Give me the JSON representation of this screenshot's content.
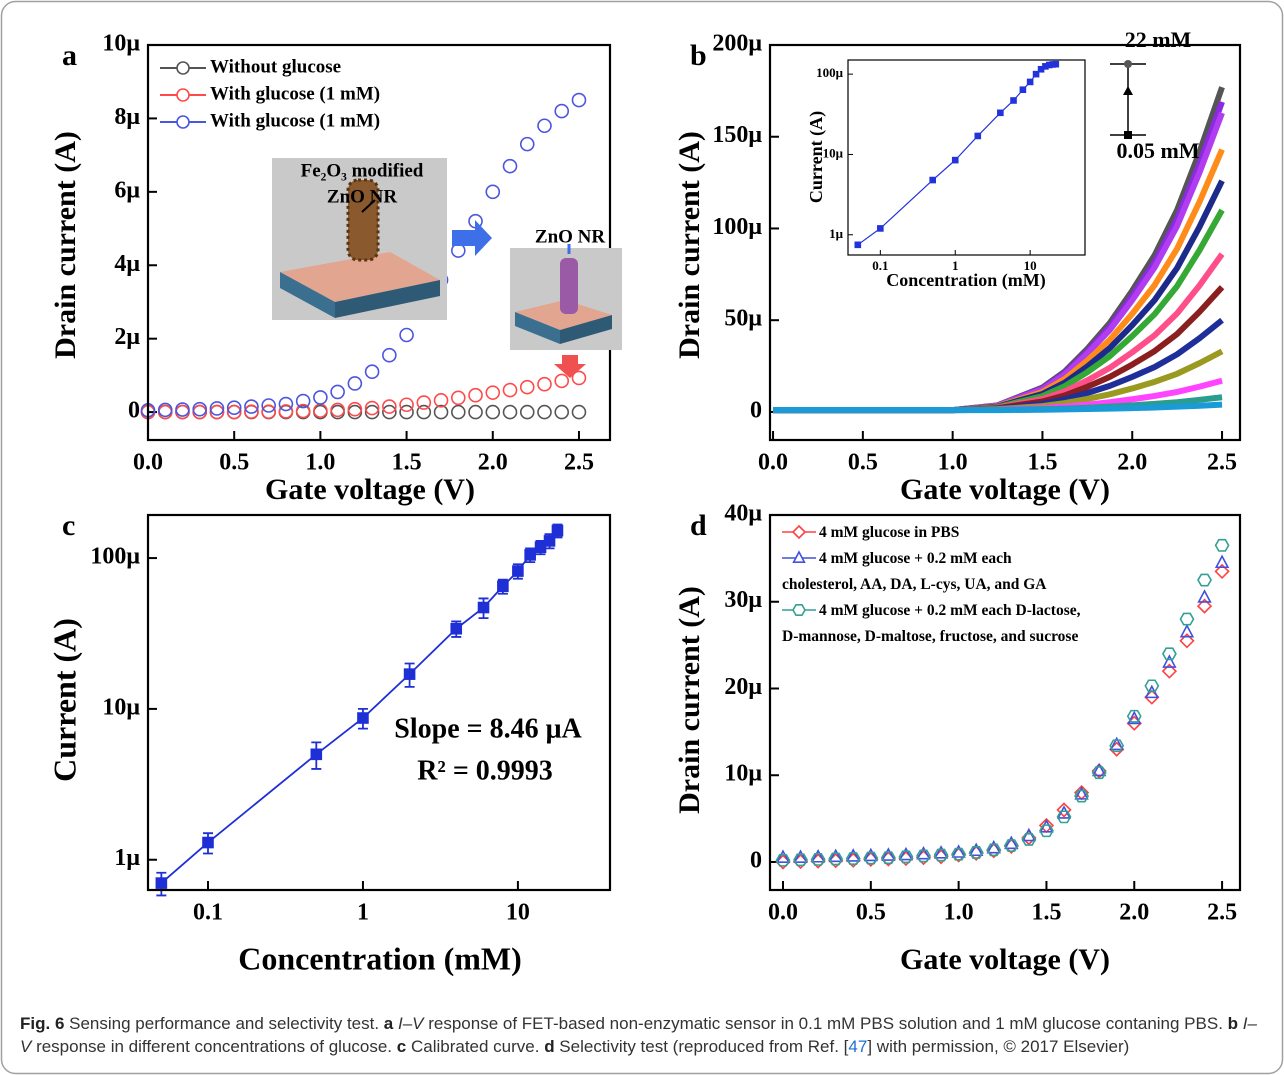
{
  "chart_data": [
    {
      "type": "line",
      "panel": "a",
      "xlabel": "Gate voltage (V)",
      "ylabel": "Drain current (A)",
      "xlim": [
        0,
        2.68
      ],
      "ylim": [
        -7.6e-07,
        1e-05
      ],
      "xticks": [
        {
          "value": 0,
          "label": "0.0"
        },
        0.5,
        {
          "value": 1,
          "label": "1.0"
        },
        1.5,
        {
          "value": 2,
          "label": "2.0"
        },
        2.5
      ],
      "yticks": [
        0,
        {
          "value": 2e-06,
          "label": "2μ"
        },
        {
          "value": 4e-06,
          "label": "4μ"
        },
        {
          "value": 6e-06,
          "label": "6μ"
        },
        {
          "value": 8e-06,
          "label": "8μ"
        },
        {
          "value": 1e-05,
          "label": "10μ"
        }
      ],
      "marker_fill": "none",
      "legend": "upper left",
      "annotations": [
        "Fe₂O₃ modified",
        "ZnO NR",
        "ZnO NR"
      ],
      "x": [
        0,
        0.1,
        0.2,
        0.3,
        0.4,
        0.5,
        0.6,
        0.7,
        0.8,
        0.9,
        1,
        1.1,
        1.2,
        1.3,
        1.4,
        1.5,
        1.6,
        1.7,
        1.8,
        1.9,
        2,
        2.1,
        2.2,
        2.3,
        2.4,
        2.5
      ],
      "series": [
        {
          "name": "Without glucose",
          "color": "#555555",
          "marker": "circle",
          "values": [
            0,
            0,
            0,
            0,
            0,
            0,
            0,
            0,
            0,
            0,
            0,
            0,
            0,
            0,
            0,
            0,
            0,
            0,
            0,
            0,
            0,
            0,
            0,
            0,
            0,
            0
          ]
        },
        {
          "name": "With glucose (1 mM)",
          "color": "#ff4a4a",
          "marker": "circle",
          "values": [
            0,
            0,
            0,
            0,
            0,
            0,
            1e-08,
            1e-08,
            2e-08,
            3e-08,
            4e-08,
            6e-08,
            8e-08,
            1.1e-07,
            1.5e-07,
            2e-07,
            2.6e-07,
            3.2e-07,
            3.9e-07,
            4.6e-07,
            5.3e-07,
            6e-07,
            6.8e-07,
            7.6e-07,
            8.5e-07,
            9.3e-07
          ]
        },
        {
          "name": "With glucose (1 mM)",
          "color": "#4a55e0",
          "marker": "circle",
          "values": [
            5e-08,
            6e-08,
            7e-08,
            8e-08,
            1e-07,
            1.2e-07,
            1.5e-07,
            1.8e-07,
            2.2e-07,
            3e-07,
            4e-07,
            5.5e-07,
            7.8e-07,
            1.1e-06,
            1.55e-06,
            2.1e-06,
            2.8e-06,
            3.6e-06,
            4.4e-06,
            5.2e-06,
            6e-06,
            6.7e-06,
            7.3e-06,
            7.8e-06,
            8.2e-06,
            8.5e-06
          ]
        }
      ]
    },
    {
      "type": "line",
      "panel": "b",
      "xlabel": "Gate voltage (V)",
      "ylabel": "Drain current (A)",
      "xlim": [
        -0.017,
        2.6
      ],
      "ylim": [
        -1.53e-05,
        0.0002
      ],
      "xticks": [
        {
          "value": 0,
          "label": "0.0"
        },
        0.5,
        {
          "value": 1,
          "label": "1.0"
        },
        1.5,
        {
          "value": 2,
          "label": "2.0"
        },
        2.5
      ],
      "yticks": [
        0,
        {
          "value": 5e-05,
          "label": "50μ"
        },
        {
          "value": 0.0001,
          "label": "100μ"
        },
        {
          "value": 0.00015,
          "label": "150μ"
        },
        {
          "value": 0.0002,
          "label": "200μ"
        }
      ],
      "x": [
        0,
        0.5,
        1,
        1.25,
        1.5,
        1.625,
        1.75,
        1.875,
        2,
        2.125,
        2.25,
        2.375,
        2.5
      ],
      "series": [
        {
          "color": "#555555",
          "values": [
            1e-06,
            1e-06,
            1e-06,
            3.6e-06,
            1.33e-05,
            2.21e-05,
            3.44e-05,
            4.85e-05,
            6.61e-05,
            8.55e-05,
            0.0001101,
            0.0001418,
            0.000177
          ]
        },
        {
          "color": "#8a2be2",
          "values": [
            1e-06,
            1e-06,
            1e-06,
            3.5e-06,
            1.28e-05,
            2.12e-05,
            3.29e-05,
            4.64e-05,
            6.32e-05,
            8.16e-05,
            0.0001052,
            0.0001354,
            0.000169
          ]
        },
        {
          "color": "#b23cf0",
          "values": [
            1e-06,
            1e-06,
            1e-06,
            3.4e-06,
            1.23e-05,
            2.04e-05,
            3.18e-05,
            4.47e-05,
            6.09e-05,
            7.88e-05,
            0.0001014,
            0.0001306,
            0.000163
          ]
        },
        {
          "color": "#ff8c1a",
          "values": [
            1e-06,
            1e-06,
            1e-06,
            3.1e-06,
            1.09e-05,
            1.8e-05,
            2.8e-05,
            3.93e-05,
            5.35e-05,
            6.92e-05,
            8.9e-05,
            0.0001146,
            0.000143
          ]
        },
        {
          "color": "#1c2a8c",
          "values": [
            1e-06,
            1e-06,
            1e-06,
            2.9e-06,
            9.8e-06,
            1.6e-05,
            2.48e-05,
            3.48e-05,
            4.73e-05,
            6.1e-05,
            7.85e-05,
            0.000101,
            0.000126
          ]
        },
        {
          "color": "#35a835",
          "values": [
            1e-06,
            1e-06,
            1e-06,
            2.6e-06,
            8.6e-06,
            1.41e-05,
            2.17e-05,
            3.04e-05,
            4.13e-05,
            5.33e-05,
            6.86e-05,
            8.82e-05,
            0.00011
          ]
        },
        {
          "color": "#ff4f8b",
          "values": [
            1e-06,
            1e-06,
            1e-06,
            2.3e-06,
            7e-06,
            1.12e-05,
            1.72e-05,
            2.4e-05,
            3.25e-05,
            4.18e-05,
            5.37e-05,
            6.9e-05,
            8.6e-05
          ]
        },
        {
          "color": "#8b1e1e",
          "values": [
            1e-06,
            1e-06,
            1e-06,
            2e-06,
            5.7e-06,
            9e-06,
            1.37e-05,
            1.91e-05,
            2.58e-05,
            3.32e-05,
            4.25e-05,
            5.46e-05,
            6.8e-05
          ]
        },
        {
          "color": "#1e2f9a",
          "values": [
            1e-06,
            1e-06,
            1e-06,
            1.7e-06,
            4.4e-06,
            6.9e-06,
            1.03e-05,
            1.42e-05,
            1.91e-05,
            2.45e-05,
            3.14e-05,
            4.02e-05,
            5e-05
          ]
        },
        {
          "color": "#9a9a20",
          "values": [
            1e-06,
            1e-06,
            1e-06,
            1.5e-06,
            3.2e-06,
            4.8e-06,
            7.1e-06,
            9.6e-06,
            1.28e-05,
            1.64e-05,
            2.08e-05,
            2.66e-05,
            3.3e-05
          ]
        },
        {
          "color": "#ff44ff",
          "values": [
            1e-06,
            1e-06,
            1e-06,
            1.2e-06,
            2.1e-06,
            2.9e-06,
            4e-06,
            5.3e-06,
            6.9e-06,
            8.7e-06,
            1.09e-05,
            1.38e-05,
            1.7e-05
          ]
        },
        {
          "color": "#2a9d8f",
          "values": [
            1e-06,
            1e-06,
            1e-06,
            1.1e-06,
            1.5e-06,
            1.8e-06,
            2.3e-06,
            2.9e-06,
            3.6e-06,
            4.4e-06,
            5.3e-06,
            6.6e-06,
            8e-06
          ]
        },
        {
          "color": "#1a9ad6",
          "values": [
            1e-06,
            1e-06,
            1e-06,
            1e-06,
            1.2e-06,
            1.4e-06,
            1.6e-06,
            1.8e-06,
            2.1e-06,
            2.4e-06,
            2.9e-06,
            3.4e-06,
            4e-06
          ]
        }
      ]
    },
    {
      "type": "line",
      "xlabel": "Concentration (mM)",
      "ylabel": "Current (A)",
      "xscale": "log",
      "yscale": "log",
      "xlim": [
        0.037,
        54
      ],
      "ylim": [
        5.6e-07,
        0.00015
      ],
      "xticks": [
        0.1,
        1,
        10
      ],
      "yticks": [
        {
          "value": 1e-06,
          "label": "1μ"
        },
        {
          "value": 1e-05,
          "label": "10μ"
        },
        {
          "value": 0.0001,
          "label": "100μ"
        }
      ],
      "marker_fill": "solid",
      "annotations": [
        "22 mM",
        "0.05 mM"
      ],
      "x": [
        0.05,
        0.1,
        0.5,
        1,
        2,
        4,
        6,
        8,
        10,
        12,
        14,
        16,
        18,
        20,
        22
      ],
      "series": [
        {
          "color": "#2233dd",
          "marker": "square",
          "line": true,
          "values": [
            7.5e-07,
            1.2e-06,
            4.8e-06,
            8.5e-06,
            1.7e-05,
            3.3e-05,
            4.7e-05,
            6.4e-05,
            8e-05,
            0.0001,
            0.000115,
            0.000125,
            0.00013,
            0.000132,
            0.000133
          ]
        }
      ]
    },
    {
      "type": "line",
      "panel": "c",
      "xlabel": "Concentration (mM)",
      "ylabel": "Current (A)",
      "xscale": "log",
      "yscale": "log",
      "xlim": [
        0.041,
        39.3
      ],
      "ylim": [
        6.3e-07,
        0.000193
      ],
      "xticks": [
        0.1,
        1,
        10
      ],
      "yticks": [
        {
          "value": 1e-06,
          "label": "1μ"
        },
        {
          "value": 1e-05,
          "label": "10μ"
        },
        {
          "value": 0.0001,
          "label": "100μ"
        }
      ],
      "marker_fill": "solid",
      "annotations": [
        "Slope = 8.46 μA",
        "R² = 0.9993"
      ],
      "x": [
        0.05,
        0.1,
        0.5,
        1,
        2,
        4,
        6,
        8,
        10,
        12,
        14,
        16,
        18
      ],
      "series": [
        {
          "color": "#1f2fd6",
          "marker": "square",
          "line": true,
          "values": [
            7e-07,
            1.3e-06,
            5e-06,
            8.7e-06,
            1.7e-05,
            3.4e-05,
            4.7e-05,
            6.5e-05,
            8.2e-05,
            0.000105,
            0.000118,
            0.00013,
            0.000152
          ],
          "errors": [
            1.2e-07,
            2e-07,
            1e-06,
            1.3e-06,
            3e-06,
            4e-06,
            7e-06,
            7e-06,
            9e-06,
            1.1e-05,
            1.2e-05,
            1.4e-05,
            1.5e-05
          ]
        }
      ]
    },
    {
      "type": "line",
      "panel": "d",
      "xlabel": "Gate voltage (V)",
      "ylabel": "Drain current (A)",
      "xlim": [
        -0.074,
        2.602
      ],
      "ylim": [
        -3.23e-06,
        4e-05
      ],
      "xticks": [
        {
          "value": 0,
          "label": "0.0"
        },
        0.5,
        {
          "value": 1,
          "label": "1.0"
        },
        1.5,
        {
          "value": 2,
          "label": "2.0"
        },
        2.5
      ],
      "yticks": [
        0,
        {
          "value": 1e-05,
          "label": "10μ"
        },
        {
          "value": 2e-05,
          "label": "20μ"
        },
        {
          "value": 3e-05,
          "label": "30μ"
        },
        {
          "value": 4e-05,
          "label": "40μ"
        }
      ],
      "marker_fill": "none",
      "legend": "upper left",
      "x": [
        0,
        0.1,
        0.2,
        0.3,
        0.4,
        0.5,
        0.6,
        0.7,
        0.8,
        0.9,
        1,
        1.1,
        1.2,
        1.3,
        1.4,
        1.5,
        1.6,
        1.7,
        1.8,
        1.9,
        2,
        2.1,
        2.2,
        2.3,
        2.4,
        2.5
      ],
      "series": [
        {
          "name": "4 mM glucose in PBS",
          "color": "#ff4040",
          "marker": "diamond",
          "values": [
            0,
            5e-08,
            1e-07,
            1.5e-07,
            2e-07,
            3e-07,
            3.5e-07,
            4e-07,
            5e-07,
            6e-07,
            8e-07,
            1e-06,
            1.3e-06,
            1.8e-06,
            2.8e-06,
            4.2e-06,
            6e-06,
            8e-06,
            1.05e-05,
            1.3e-05,
            1.6e-05,
            1.9e-05,
            2.2e-05,
            2.55e-05,
            2.95e-05,
            3.35e-05
          ]
        },
        {
          "name": "4 mM glucose + 0.2 mM each\ncholesterol, AA, DA, L-cys, UA, and GA",
          "color": "#4050e0",
          "marker": "triangle",
          "values": [
            5e-07,
            5e-07,
            5.5e-07,
            6e-07,
            6.5e-07,
            7e-07,
            7.5e-07,
            8e-07,
            9e-07,
            1e-06,
            1.1e-06,
            1.3e-06,
            1.6e-06,
            2.1e-06,
            3e-06,
            4e-06,
            5.6e-06,
            7.8e-06,
            1.05e-05,
            1.35e-05,
            1.65e-05,
            1.95e-05,
            2.3e-05,
            2.65e-05,
            3.05e-05,
            3.45e-05
          ]
        },
        {
          "name": "4 mM glucose + 0.2 mM each D-lactose,\nD-mannose, D-maltose, fructose, and sucrose",
          "color": "#34a093",
          "marker": "hexagon",
          "values": [
            2e-07,
            2.5e-07,
            3e-07,
            3.5e-07,
            4e-07,
            4.5e-07,
            5e-07,
            6e-07,
            7e-07,
            8e-07,
            9e-07,
            1.1e-06,
            1.4e-06,
            1.9e-06,
            2.6e-06,
            3.6e-06,
            5.2e-06,
            7.6e-06,
            1.03e-05,
            1.34e-05,
            1.68e-05,
            2.03e-05,
            2.4e-05,
            2.8e-05,
            3.25e-05,
            3.65e-05
          ]
        }
      ]
    }
  ],
  "caption": {
    "runs": [
      {
        "text": "Fig. 6",
        "style": "bold"
      },
      {
        "text": "  Sensing performance and selectivity test. ",
        "style": "plain"
      },
      {
        "text": "a",
        "style": "bold"
      },
      {
        "text": " I–V",
        "style": "italic"
      },
      {
        "text": " response of FET-based non-enzymatic sensor in 0.1 mM PBS solution and 1 mM glucose contaning PBS. ",
        "style": "plain"
      },
      {
        "text": "b",
        "style": "bold"
      },
      {
        "text": " I–V",
        "style": "italic"
      },
      {
        "text": " response in different concentrations of glucose. ",
        "style": "plain"
      },
      {
        "text": "c",
        "style": "bold"
      },
      {
        "text": " Calibrated curve. ",
        "style": "plain"
      },
      {
        "text": "d",
        "style": "bold"
      },
      {
        "text": " Selectivity test (reproduced from Ref. [",
        "style": "plain"
      },
      {
        "text": "47",
        "style": "link"
      },
      {
        "text": "] with permission, © 2017 Elsevier)",
        "style": "plain"
      }
    ]
  }
}
